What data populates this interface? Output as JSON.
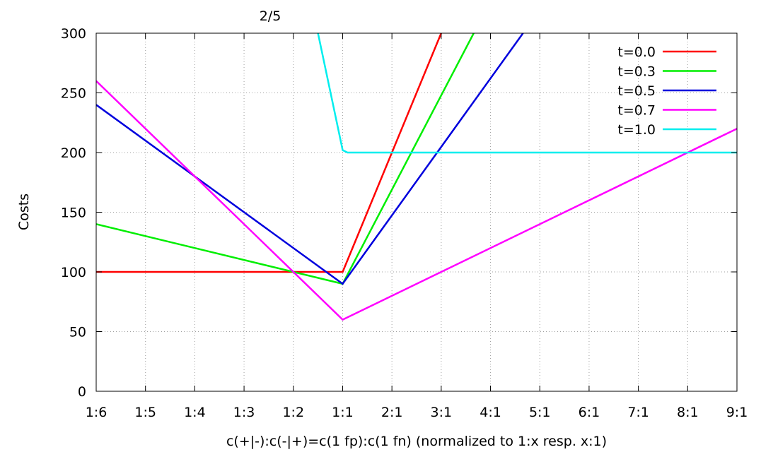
{
  "chart_data": {
    "type": "line",
    "title": "2/5",
    "xlabel": "c(+|-):c(-|+)=c(1 fp):c(1 fn) (normalized to 1:x resp. x:1)",
    "ylabel": "Costs",
    "categories": [
      "1:6",
      "1:5",
      "1:4",
      "1:3",
      "1:2",
      "1:1",
      "2:1",
      "3:1",
      "4:1",
      "5:1",
      "6:1",
      "7:1",
      "8:1",
      "9:1"
    ],
    "ylim": [
      0,
      300
    ],
    "yticks": [
      "0",
      "50",
      "100",
      "150",
      "200",
      "250",
      "300"
    ],
    "grid": true,
    "legend_position": "top-right",
    "series": [
      {
        "name": "t=0.0",
        "color": "#ff0000",
        "points": [
          [
            0,
            100
          ],
          [
            5,
            100
          ],
          [
            7,
            300
          ]
        ]
      },
      {
        "name": "t=0.3",
        "color": "#00ee00",
        "points": [
          [
            0,
            140
          ],
          [
            5,
            90
          ],
          [
            7.66,
            300
          ]
        ]
      },
      {
        "name": "t=0.5",
        "color": "#0000dd",
        "points": [
          [
            0,
            240
          ],
          [
            5,
            90
          ],
          [
            8.66,
            300
          ]
        ]
      },
      {
        "name": "t=0.7",
        "color": "#ff00ff",
        "points": [
          [
            0,
            260
          ],
          [
            5,
            60
          ],
          [
            13,
            220
          ]
        ]
      },
      {
        "name": "t=1.0",
        "color": "#00eeee",
        "points": [
          [
            4.5,
            300
          ],
          [
            5,
            202
          ],
          [
            5.1,
            200
          ],
          [
            13,
            200
          ]
        ]
      }
    ]
  }
}
